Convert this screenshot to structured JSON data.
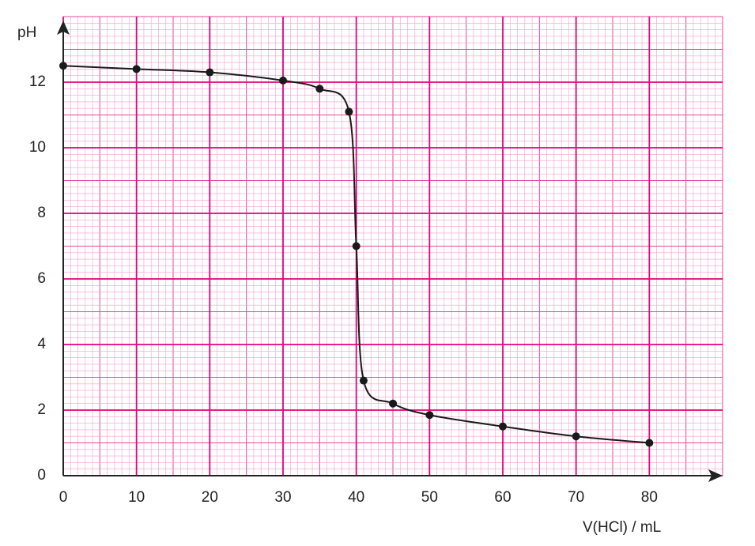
{
  "chart_data": {
    "type": "line",
    "xlabel": "V(HCl) / mL",
    "ylabel": "pH",
    "x": [
      0,
      10,
      20,
      30,
      35,
      39,
      40,
      41,
      45,
      50,
      60,
      70,
      80
    ],
    "series": [
      {
        "name": "pH",
        "color": "#1a1a1a",
        "values": [
          12.5,
          12.4,
          12.3,
          12.05,
          11.8,
          11.1,
          7,
          2.9,
          2.2,
          1.85,
          1.5,
          1.2,
          1.0
        ]
      }
    ],
    "xlim": [
      0,
      90
    ],
    "ylim": [
      0,
      14
    ],
    "xticks": [
      0,
      10,
      20,
      30,
      40,
      50,
      60,
      70,
      80
    ],
    "yticks": [
      0,
      2,
      4,
      6,
      8,
      10,
      12
    ],
    "grid": true
  }
}
